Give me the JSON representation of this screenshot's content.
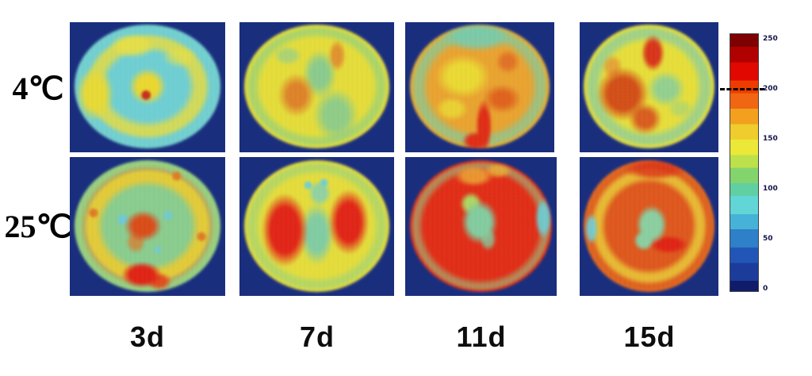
{
  "chart_data": {
    "type": "heatmap",
    "rows": [
      "4℃",
      "25℃"
    ],
    "columns": [
      "3d",
      "7d",
      "11d",
      "15d"
    ],
    "colorbar": {
      "colormap": "jet",
      "range": [
        0,
        250
      ],
      "ticks": [
        "250",
        "200",
        "150",
        "100",
        "50",
        "0"
      ],
      "dashed_marker_value": "200",
      "legend_position": "right"
    },
    "panels": [
      {
        "row": "4℃",
        "column": "3d",
        "pattern": "cyan interior with mottled yellow ring and small yellow core with red spot",
        "approx_level_range": [
          75,
          160
        ]
      },
      {
        "row": "4℃",
        "column": "7d",
        "pattern": "yellow disc, green patches in centre and lower right, orange blob left of centre",
        "approx_level_range": [
          110,
          190
        ]
      },
      {
        "row": "4℃",
        "column": "11d",
        "pattern": "orange-yellow disc, teal upper rim, red vertical streak at bottom centre",
        "approx_level_range": [
          120,
          220
        ]
      },
      {
        "row": "4℃",
        "column": "15d",
        "pattern": "yellow disc with large red-orange region on left, green patch right of centre, teal rim",
        "approx_level_range": [
          120,
          230
        ]
      },
      {
        "row": "25℃",
        "column": "3d",
        "pattern": "green-teal interior, yellow-orange mottled ring, orange-red core, red blob at bottom",
        "approx_level_range": [
          100,
          230
        ]
      },
      {
        "row": "25℃",
        "column": "7d",
        "pattern": "yellow disc with two large red lobes left and right, teal central column, cyan spots at top",
        "approx_level_range": [
          110,
          240
        ]
      },
      {
        "row": "25℃",
        "column": "11d",
        "pattern": "mostly red disc, green central patch, cyan patch at right edge, orange top rim",
        "approx_level_range": [
          90,
          245
        ]
      },
      {
        "row": "25℃",
        "column": "15d",
        "pattern": "orange-red disc, green central blob, yellow inner ring, red streak to lower right, cyan left edge",
        "approx_level_range": [
          100,
          245
        ]
      }
    ],
    "layout": {
      "grid": "2 rows x 4 columns",
      "panel_background": "dark navy"
    }
  },
  "colors": {
    "panel_background": "#1a2e7e",
    "jet_high": "#7e0000",
    "jet_low": "#101c6a",
    "background": "#ffffff"
  }
}
